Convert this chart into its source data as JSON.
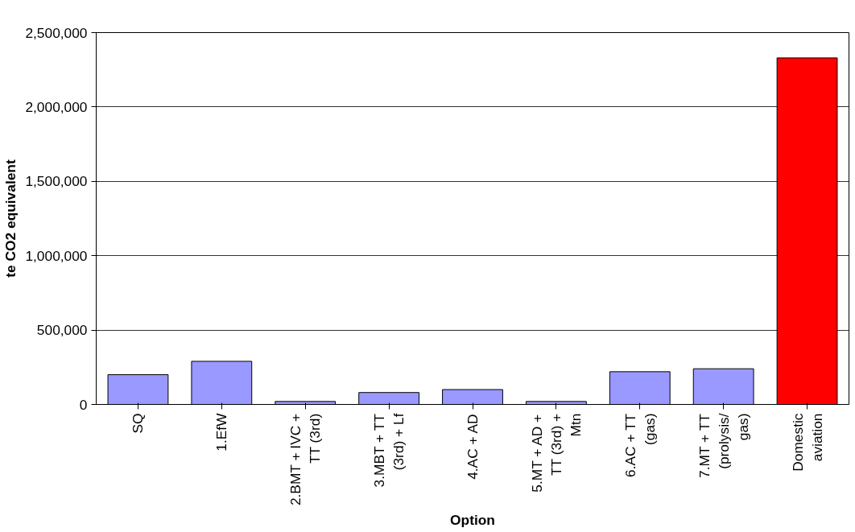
{
  "chart_data": {
    "type": "bar",
    "xlabel": "Option",
    "ylabel": "te CO2 equivalent",
    "categories": [
      "SQ",
      "1.EfW",
      "2.BMT + IVC + TT (3rd)",
      "3.MBT + TT (3rd) + Lf",
      "4.AC + AD",
      "5.MT + AD + TT (3rd) + Mtn",
      "6.AC + TT (gas)",
      "7.MT + TT (prolysis/ gas)",
      "Domestic aviation"
    ],
    "values": [
      200000,
      290000,
      20000,
      80000,
      100000,
      20000,
      220000,
      240000,
      2330000
    ],
    "colors": [
      "#9999ff",
      "#9999ff",
      "#9999ff",
      "#9999ff",
      "#9999ff",
      "#9999ff",
      "#9999ff",
      "#9999ff",
      "#ff0000"
    ],
    "ylim": [
      0,
      2500000
    ],
    "yticks": [
      {
        "value": 0,
        "label": "0"
      },
      {
        "value": 500000,
        "label": "500,000"
      },
      {
        "value": 1000000,
        "label": "1,000,000"
      },
      {
        "value": 1500000,
        "label": "1,500,000"
      },
      {
        "value": 2000000,
        "label": "2,000,000"
      },
      {
        "value": 2500000,
        "label": "2,500,000"
      }
    ],
    "grid": "y"
  }
}
